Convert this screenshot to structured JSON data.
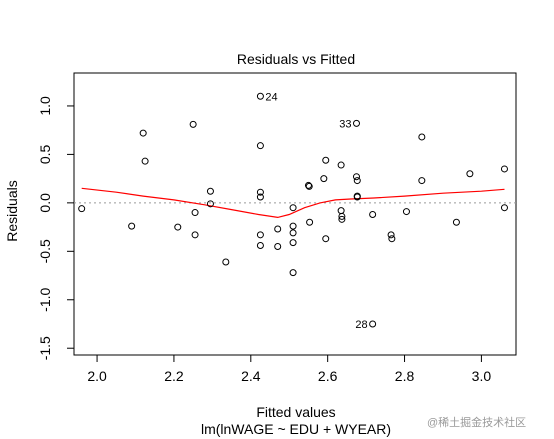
{
  "chart_data": {
    "type": "scatter",
    "title": "Residuals vs Fitted",
    "xlabel": "Fitted values",
    "subtitle": "lm(lnWAGE ~ EDU + WYEAR)",
    "ylabel": "Residuals",
    "xlim": [
      1.94,
      3.09
    ],
    "ylim": [
      -1.57,
      1.34
    ],
    "xticks": [
      "2.0",
      "2.2",
      "2.4",
      "2.6",
      "2.8",
      "3.0"
    ],
    "xtick_values": [
      2.0,
      2.2,
      2.4,
      2.6,
      2.8,
      3.0
    ],
    "yticks": [
      "-1.5",
      "-1.0",
      "-0.5",
      "0.0",
      "0.5",
      "1.0"
    ],
    "ytick_values": [
      -1.5,
      -1.0,
      -0.5,
      0.0,
      0.5,
      1.0
    ],
    "zero_line": 0,
    "points": [
      {
        "x": 1.96,
        "y": -0.06
      },
      {
        "x": 2.09,
        "y": -0.24
      },
      {
        "x": 2.12,
        "y": 0.72
      },
      {
        "x": 2.125,
        "y": 0.43
      },
      {
        "x": 2.21,
        "y": -0.25
      },
      {
        "x": 2.25,
        "y": 0.81
      },
      {
        "x": 2.255,
        "y": -0.1
      },
      {
        "x": 2.255,
        "y": -0.33
      },
      {
        "x": 2.295,
        "y": 0.12
      },
      {
        "x": 2.295,
        "y": -0.01
      },
      {
        "x": 2.335,
        "y": -0.61
      },
      {
        "x": 2.425,
        "y": 1.1,
        "label": "24"
      },
      {
        "x": 2.425,
        "y": 0.59
      },
      {
        "x": 2.425,
        "y": 0.11
      },
      {
        "x": 2.425,
        "y": 0.06
      },
      {
        "x": 2.425,
        "y": -0.33
      },
      {
        "x": 2.425,
        "y": -0.44
      },
      {
        "x": 2.47,
        "y": -0.27
      },
      {
        "x": 2.47,
        "y": -0.45
      },
      {
        "x": 2.51,
        "y": -0.05
      },
      {
        "x": 2.51,
        "y": -0.24
      },
      {
        "x": 2.51,
        "y": -0.31
      },
      {
        "x": 2.51,
        "y": -0.41
      },
      {
        "x": 2.51,
        "y": -0.72
      },
      {
        "x": 2.55,
        "y": 0.18
      },
      {
        "x": 2.552,
        "y": 0.17
      },
      {
        "x": 2.553,
        "y": -0.2
      },
      {
        "x": 2.59,
        "y": 0.25
      },
      {
        "x": 2.595,
        "y": 0.44
      },
      {
        "x": 2.595,
        "y": -0.37
      },
      {
        "x": 2.635,
        "y": 0.39
      },
      {
        "x": 2.635,
        "y": -0.08
      },
      {
        "x": 2.637,
        "y": -0.14
      },
      {
        "x": 2.637,
        "y": -0.17
      },
      {
        "x": 2.675,
        "y": 0.82,
        "label": "33"
      },
      {
        "x": 2.675,
        "y": 0.27
      },
      {
        "x": 2.677,
        "y": 0.23
      },
      {
        "x": 2.677,
        "y": 0.07
      },
      {
        "x": 2.677,
        "y": 0.06
      },
      {
        "x": 2.717,
        "y": -0.12
      },
      {
        "x": 2.717,
        "y": -1.25,
        "label": "28"
      },
      {
        "x": 2.765,
        "y": -0.33
      },
      {
        "x": 2.767,
        "y": -0.37
      },
      {
        "x": 2.805,
        "y": -0.09
      },
      {
        "x": 2.845,
        "y": 0.68
      },
      {
        "x": 2.845,
        "y": 0.23
      },
      {
        "x": 2.935,
        "y": -0.2
      },
      {
        "x": 2.97,
        "y": 0.3
      },
      {
        "x": 3.06,
        "y": 0.35
      },
      {
        "x": 3.06,
        "y": -0.05
      }
    ],
    "smoother": {
      "color": "#ff0000",
      "points": [
        {
          "x": 1.96,
          "y": 0.15
        },
        {
          "x": 2.05,
          "y": 0.11
        },
        {
          "x": 2.12,
          "y": 0.07
        },
        {
          "x": 2.2,
          "y": 0.03
        },
        {
          "x": 2.28,
          "y": -0.02
        },
        {
          "x": 2.35,
          "y": -0.07
        },
        {
          "x": 2.42,
          "y": -0.12
        },
        {
          "x": 2.47,
          "y": -0.15
        },
        {
          "x": 2.5,
          "y": -0.12
        },
        {
          "x": 2.54,
          "y": -0.05
        },
        {
          "x": 2.58,
          "y": 0.0
        },
        {
          "x": 2.62,
          "y": 0.03
        },
        {
          "x": 2.66,
          "y": 0.04
        },
        {
          "x": 2.72,
          "y": 0.05
        },
        {
          "x": 2.8,
          "y": 0.07
        },
        {
          "x": 2.9,
          "y": 0.1
        },
        {
          "x": 3.0,
          "y": 0.12
        },
        {
          "x": 3.06,
          "y": 0.14
        }
      ]
    }
  },
  "watermark": "@稀土掘金技术社区",
  "colors": {
    "points": "#000000",
    "smoother": "#ff0000",
    "zero_line": "#9a9a9a",
    "axes": "#000000"
  }
}
